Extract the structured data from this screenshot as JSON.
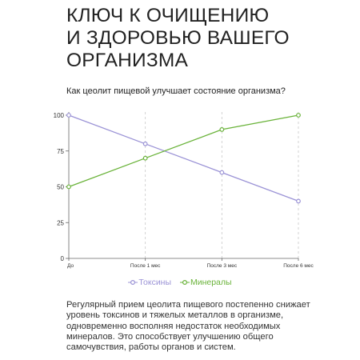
{
  "heading": {
    "line1": "КЛЮЧ К ОЧИЩЕНИЮ",
    "line2": "И ЗДОРОВЬЮ ВАШЕГО",
    "line3": "ОРГАНИЗМА"
  },
  "question": "Как цеолит пищевой улучшает состояние организма?",
  "chart_data": {
    "type": "line",
    "categories": [
      "До",
      "После 1 мес",
      "После 3 мес",
      "После 6 мес"
    ],
    "ylim": [
      0,
      100
    ],
    "yticks": [
      "0",
      "25",
      "50",
      "75",
      "100"
    ],
    "grid": "vertical dashed",
    "legend_position": "bottom",
    "series": [
      {
        "name": "Токсины",
        "color": "#9b93d6",
        "values": [
          100,
          80,
          60,
          40
        ]
      },
      {
        "name": "Минералы",
        "color": "#6ab33a",
        "values": [
          50,
          70,
          90,
          100
        ]
      }
    ]
  },
  "description": "Регулярный прием цеолита пищевого постепенно снижает уровень токсинов и тяжелых металлов в организме, одновременно восполняя недостаток необходимых минералов. Это способствует улучшению общего самочувствия, работы органов и систем."
}
